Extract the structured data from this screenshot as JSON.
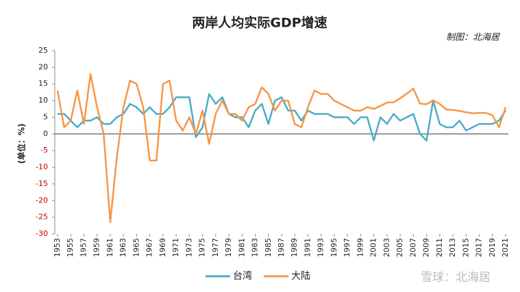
{
  "chart_data": {
    "type": "line",
    "title": "两岸人均实际GDP增速",
    "subtitle": "制图：北海居",
    "y_label": "(单位：%)",
    "watermark": "雪球：北海居",
    "x": [
      1953,
      1954,
      1955,
      1956,
      1957,
      1958,
      1959,
      1960,
      1961,
      1962,
      1963,
      1964,
      1965,
      1966,
      1967,
      1968,
      1969,
      1970,
      1971,
      1972,
      1973,
      1974,
      1975,
      1976,
      1977,
      1978,
      1979,
      1980,
      1981,
      1982,
      1983,
      1984,
      1985,
      1986,
      1987,
      1988,
      1989,
      1990,
      1991,
      1992,
      1993,
      1994,
      1995,
      1996,
      1997,
      1998,
      1999,
      2000,
      2001,
      2002,
      2003,
      2004,
      2005,
      2006,
      2007,
      2008,
      2009,
      2010,
      2011,
      2012,
      2013,
      2014,
      2015,
      2016,
      2017,
      2018,
      2019,
      2020,
      2021
    ],
    "series": [
      {
        "name": "台湾",
        "color": "#4bacc6",
        "values": [
          6,
          6,
          4,
          2,
          4,
          4,
          5,
          3,
          3,
          5,
          6,
          9,
          8,
          6,
          8,
          6,
          6,
          8,
          11,
          11,
          11,
          -1,
          2,
          12,
          9,
          11,
          6,
          5,
          5,
          2,
          7,
          9,
          3,
          10,
          11,
          7,
          7,
          4,
          7,
          6,
          6,
          6,
          5,
          5,
          5,
          3,
          5,
          5,
          -2,
          5,
          3,
          6,
          4,
          5,
          6,
          0,
          -2,
          10,
          3,
          2,
          2,
          4,
          1,
          2,
          3,
          3,
          3,
          4,
          7
        ]
      },
      {
        "name": "大陆",
        "color": "#f79646",
        "values": [
          13,
          2,
          4,
          13,
          3,
          18,
          8,
          0,
          -26.5,
          -7,
          8,
          16,
          15,
          8,
          -8,
          -8,
          15,
          16,
          4,
          1,
          5,
          0,
          7,
          -3,
          6,
          10,
          6,
          6,
          4,
          8,
          9,
          14,
          12,
          7,
          10,
          10,
          3,
          2,
          8,
          13,
          12,
          12,
          10,
          9,
          8,
          7,
          7,
          8,
          7.5,
          8.4,
          9.4,
          9.5,
          10.7,
          12.1,
          13.6,
          9.1,
          8.9,
          10.1,
          9,
          7.3,
          7.2,
          6.9,
          6.5,
          6.2,
          6.3,
          6.3,
          5.6,
          2,
          8
        ]
      }
    ],
    "xlim": [
      1953,
      2021
    ],
    "xticks": [
      1953,
      1955,
      1957,
      1959,
      1961,
      1963,
      1965,
      1967,
      1969,
      1971,
      1973,
      1975,
      1977,
      1979,
      1981,
      1983,
      1985,
      1987,
      1989,
      1991,
      1993,
      1995,
      1997,
      1999,
      2001,
      2003,
      2005,
      2007,
      2009,
      2011,
      2013,
      2015,
      2017,
      2019,
      2021
    ],
    "ylim": [
      -30,
      25
    ],
    "yticks": [
      -30,
      -25,
      -20,
      -15,
      -10,
      -5,
      0,
      5,
      10,
      15,
      20,
      25
    ],
    "negative_tick_color": "#c00000",
    "legend": "bottom"
  }
}
